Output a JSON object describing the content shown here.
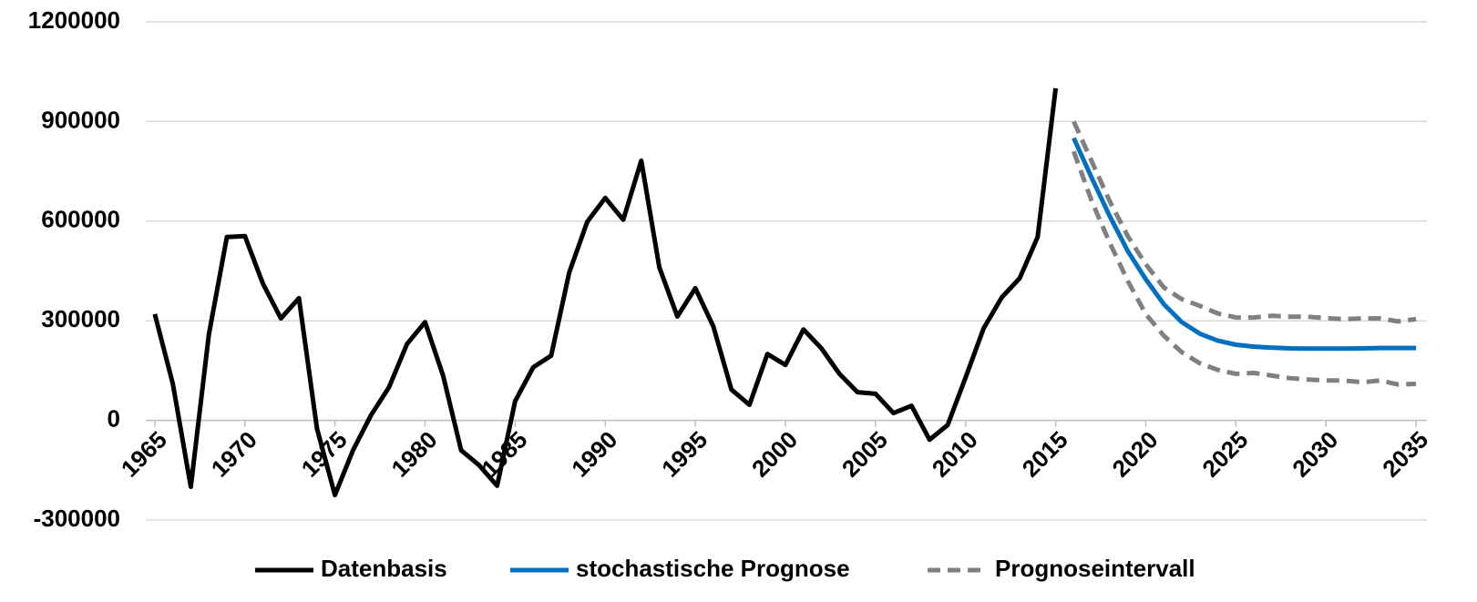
{
  "chart_data": {
    "type": "line",
    "x": [
      1965,
      1966,
      1967,
      1968,
      1969,
      1970,
      1971,
      1972,
      1973,
      1974,
      1975,
      1976,
      1977,
      1978,
      1979,
      1980,
      1981,
      1982,
      1983,
      1984,
      1985,
      1986,
      1987,
      1988,
      1989,
      1990,
      1991,
      1992,
      1993,
      1994,
      1995,
      1996,
      1997,
      1998,
      1999,
      2000,
      2001,
      2002,
      2003,
      2004,
      2005,
      2006,
      2007,
      2008,
      2009,
      2010,
      2011,
      2012,
      2013,
      2014,
      2015,
      2016,
      2017,
      2018,
      2019,
      2020,
      2021,
      2022,
      2023,
      2024,
      2025,
      2026,
      2027,
      2028,
      2029,
      2030,
      2031,
      2032,
      2033,
      2034,
      2035
    ],
    "xlim": [
      1964.5,
      2035.5
    ],
    "xticks": [
      1965,
      1970,
      1975,
      1980,
      1985,
      1990,
      1995,
      2000,
      2005,
      2010,
      2015,
      2020,
      2025,
      2030,
      2035
    ],
    "ylim": [
      -300000,
      1200000
    ],
    "yticks": [
      -300000,
      0,
      300000,
      600000,
      900000,
      1200000
    ],
    "grid": true,
    "legend": "bottom",
    "series": [
      {
        "name": "Datenbasis",
        "color": "#000000",
        "values": [
          320000,
          110000,
          -200000,
          258000,
          552000,
          555000,
          412000,
          307000,
          368000,
          -25000,
          -225000,
          -90000,
          16000,
          100000,
          230000,
          296000,
          135000,
          -90000,
          -135000,
          -197000,
          58000,
          160000,
          195000,
          445000,
          598000,
          670000,
          604000,
          782000,
          461000,
          313000,
          398000,
          283000,
          93000,
          47000,
          200000,
          167000,
          274000,
          217000,
          140000,
          85000,
          80000,
          22000,
          44000,
          -58000,
          -14000,
          129000,
          277000,
          370000,
          428000,
          552000,
          1000000,
          null,
          null,
          null,
          null,
          null,
          null,
          null,
          null,
          null,
          null,
          null,
          null,
          null,
          null,
          null,
          null,
          null,
          null,
          null,
          null
        ]
      },
      {
        "name": "stochastische Prognose",
        "color": "#0070c0",
        "values": [
          null,
          null,
          null,
          null,
          null,
          null,
          null,
          null,
          null,
          null,
          null,
          null,
          null,
          null,
          null,
          null,
          null,
          null,
          null,
          null,
          null,
          null,
          null,
          null,
          null,
          null,
          null,
          null,
          null,
          null,
          null,
          null,
          null,
          null,
          null,
          null,
          null,
          null,
          null,
          null,
          null,
          null,
          null,
          null,
          null,
          null,
          null,
          null,
          null,
          null,
          null,
          850000,
          730000,
          615000,
          510000,
          425000,
          350000,
          296000,
          261000,
          240000,
          228000,
          222000,
          219000,
          217000,
          216000,
          216000,
          216000,
          217000,
          218000,
          218000,
          218000
        ]
      },
      {
        "name": "Prognoseintervall",
        "color": "#808080",
        "dashed": true,
        "upper": [
          null,
          null,
          null,
          null,
          null,
          null,
          null,
          null,
          null,
          null,
          null,
          null,
          null,
          null,
          null,
          null,
          null,
          null,
          null,
          null,
          null,
          null,
          null,
          null,
          null,
          null,
          null,
          null,
          null,
          null,
          null,
          null,
          null,
          null,
          null,
          null,
          null,
          null,
          null,
          null,
          null,
          null,
          null,
          null,
          null,
          null,
          null,
          null,
          null,
          null,
          null,
          900000,
          780000,
          660000,
          555000,
          470000,
          400000,
          365000,
          345000,
          322000,
          310000,
          310000,
          315000,
          312000,
          312000,
          308000,
          305000,
          307000,
          307000,
          298000,
          305000
        ],
        "lower": [
          null,
          null,
          null,
          null,
          null,
          null,
          null,
          null,
          null,
          null,
          null,
          null,
          null,
          null,
          null,
          null,
          null,
          null,
          null,
          null,
          null,
          null,
          null,
          null,
          null,
          null,
          null,
          null,
          null,
          null,
          null,
          null,
          null,
          null,
          null,
          null,
          null,
          null,
          null,
          null,
          null,
          null,
          null,
          null,
          null,
          null,
          null,
          null,
          null,
          null,
          null,
          810000,
          660000,
          535000,
          420000,
          320000,
          255000,
          205000,
          172000,
          152000,
          140000,
          143000,
          135000,
          127000,
          123000,
          120000,
          120000,
          115000,
          120000,
          108000,
          110000
        ]
      }
    ]
  }
}
